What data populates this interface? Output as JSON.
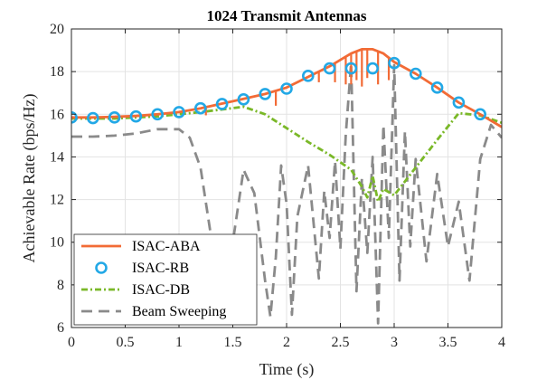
{
  "chart_data": {
    "type": "line",
    "title": "1024 Transmit Antennas",
    "xlabel": "Time (s)",
    "ylabel": "Achievable Rate (bps/Hz)",
    "xlim": [
      0,
      4
    ],
    "ylim": [
      6,
      20
    ],
    "xticks": [
      0,
      0.5,
      1,
      1.5,
      2,
      2.5,
      3,
      3.5,
      4
    ],
    "xtick_labels": [
      "0",
      "0.5",
      "1",
      "1.5",
      "2",
      "2.5",
      "3",
      "3.5",
      "4"
    ],
    "yticks": [
      6,
      8,
      10,
      12,
      14,
      16,
      18,
      20
    ],
    "ytick_labels": [
      "6",
      "8",
      "10",
      "12",
      "14",
      "16",
      "18",
      "20"
    ],
    "grid": true,
    "legend_position": "bottom-left",
    "series": [
      {
        "name": "ISAC-ABA",
        "color": "#f26b36",
        "style": "solid",
        "x": [
          0,
          0.2,
          0.4,
          0.6,
          0.8,
          1.0,
          1.2,
          1.4,
          1.6,
          1.8,
          2.0,
          2.2,
          2.4,
          2.5,
          2.6,
          2.7,
          2.8,
          2.9,
          3.0,
          3.2,
          3.4,
          3.6,
          3.8,
          4.0
        ],
        "y": [
          15.85,
          15.85,
          15.88,
          15.92,
          16.0,
          16.1,
          16.28,
          16.5,
          16.72,
          16.95,
          17.25,
          17.75,
          18.25,
          18.55,
          18.85,
          19.05,
          19.05,
          18.85,
          18.45,
          17.9,
          17.25,
          16.55,
          16.0,
          15.4
        ],
        "dips": [
          {
            "x": 1.25,
            "y": 15.95
          },
          {
            "x": 1.9,
            "y": 16.4
          },
          {
            "x": 2.3,
            "y": 17.5
          },
          {
            "x": 2.45,
            "y": 17.5
          },
          {
            "x": 2.55,
            "y": 17.4
          },
          {
            "x": 2.6,
            "y": 17.4
          },
          {
            "x": 2.65,
            "y": 17.6
          },
          {
            "x": 2.7,
            "y": 17.3
          },
          {
            "x": 2.75,
            "y": 17.7
          },
          {
            "x": 2.85,
            "y": 17.4
          },
          {
            "x": 2.95,
            "y": 17.6
          }
        ]
      },
      {
        "name": "ISAC-RB",
        "color": "#22a8e6",
        "style": "markers",
        "x": [
          0,
          0.2,
          0.4,
          0.6,
          0.8,
          1.0,
          1.2,
          1.4,
          1.6,
          1.8,
          2.0,
          2.2,
          2.4,
          2.6,
          2.8,
          3.0,
          3.2,
          3.4,
          3.6,
          3.8
        ],
        "y": [
          15.85,
          15.82,
          15.85,
          15.9,
          16.0,
          16.1,
          16.28,
          16.48,
          16.7,
          16.95,
          17.2,
          17.8,
          18.15,
          18.15,
          18.15,
          18.4,
          17.9,
          17.25,
          16.55,
          16.0
        ]
      },
      {
        "name": "ISAC-DB",
        "color": "#7ab828",
        "style": "dashdot",
        "x": [
          0,
          0.4,
          0.8,
          1.2,
          1.6,
          1.8,
          2.0,
          2.2,
          2.4,
          2.6,
          2.7,
          2.75,
          2.8,
          2.85,
          2.9,
          3.0,
          3.2,
          3.4,
          3.6,
          3.8,
          4.0
        ],
        "y": [
          15.8,
          15.8,
          15.9,
          16.1,
          16.35,
          16.0,
          15.35,
          14.7,
          14.1,
          13.4,
          12.6,
          12.1,
          13.1,
          11.9,
          12.5,
          12.2,
          13.5,
          14.8,
          16.05,
          15.95,
          15.6
        ]
      },
      {
        "name": "Beam Sweeping",
        "color": "#8a8a8a",
        "style": "dashed",
        "x": [
          0,
          0.2,
          0.4,
          0.6,
          0.8,
          1.0,
          1.1,
          1.2,
          1.3,
          1.4,
          1.5,
          1.6,
          1.7,
          1.8,
          1.85,
          1.9,
          1.95,
          2.0,
          2.05,
          2.1,
          2.2,
          2.3,
          2.35,
          2.4,
          2.45,
          2.5,
          2.55,
          2.6,
          2.65,
          2.7,
          2.75,
          2.8,
          2.85,
          2.9,
          2.95,
          3.0,
          3.05,
          3.1,
          3.15,
          3.2,
          3.3,
          3.4,
          3.5,
          3.6,
          3.7,
          3.8,
          3.9,
          4.0
        ],
        "y": [
          14.95,
          14.95,
          15.0,
          15.1,
          15.3,
          15.3,
          14.9,
          13.5,
          10.2,
          7.5,
          10.0,
          13.4,
          12.3,
          8.2,
          6.5,
          9.3,
          13.6,
          11.8,
          6.6,
          11.2,
          13.6,
          8.3,
          12.4,
          10.2,
          13.8,
          9.7,
          15.0,
          18.4,
          7.7,
          13.0,
          9.5,
          14.0,
          6.2,
          15.5,
          10.2,
          18.3,
          8.2,
          15.2,
          9.8,
          13.9,
          9.1,
          13.2,
          9.8,
          11.9,
          8.2,
          13.9,
          15.5,
          14.9
        ]
      }
    ]
  }
}
